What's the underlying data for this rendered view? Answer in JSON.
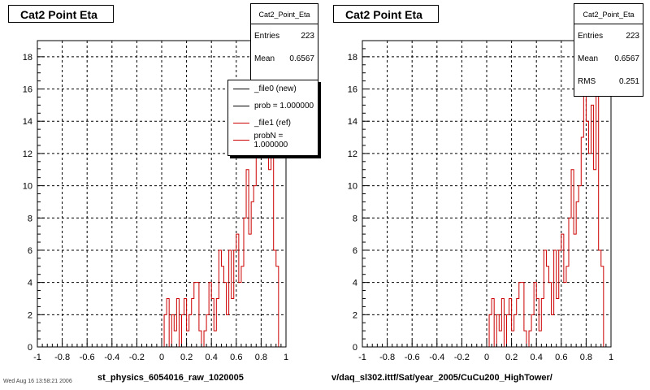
{
  "chart_data": [
    {
      "type": "bar",
      "title": "Cat2 Point Eta",
      "xlabel": "st_physics_6054016_raw_1020005",
      "xlim": [
        -1,
        1
      ],
      "ylim": [
        0,
        19
      ],
      "x_ticks": [
        "-1",
        "-0.8",
        "-0.6",
        "-0.4",
        "-0.2",
        "0",
        "0.2",
        "0.4",
        "0.6",
        "0.8",
        "1"
      ],
      "y_ticks": [
        "0",
        "2",
        "4",
        "6",
        "8",
        "10",
        "12",
        "14",
        "16",
        "18"
      ],
      "grid": true,
      "bin_width": 0.02,
      "series": [
        {
          "name": "_file0 (new)",
          "color": "#000000"
        },
        {
          "name": "_file1 (ref)",
          "color": "#cc0000",
          "values": [
            0,
            0,
            0,
            0,
            0,
            0,
            0,
            0,
            0,
            0,
            0,
            0,
            0,
            0,
            0,
            0,
            0,
            0,
            0,
            0,
            0,
            0,
            0,
            0,
            0,
            0,
            0,
            0,
            0,
            0,
            0,
            0,
            0,
            0,
            0,
            0,
            0,
            0,
            0,
            0,
            0,
            0,
            0,
            0,
            0,
            0,
            0,
            0,
            0,
            0,
            0,
            2,
            3,
            0,
            2,
            1,
            3,
            0,
            2,
            3,
            1,
            2,
            3,
            4,
            4,
            1,
            0,
            1,
            2,
            4,
            3,
            1,
            3,
            6,
            5,
            4,
            2,
            6,
            3,
            6,
            7,
            4,
            5,
            8,
            11,
            7,
            9,
            10,
            13,
            18,
            14,
            12,
            15,
            11,
            16,
            6,
            5,
            0,
            0,
            0
          ]
        }
      ],
      "stats": {
        "header": "Cat2_Point_Eta",
        "entries_label": "Entries",
        "entries": "223",
        "mean_label": "Mean",
        "mean": "0.6567"
      },
      "legend": [
        {
          "label": "_file0 (new)",
          "color": "#000000"
        },
        {
          "label": "prob = 1.000000",
          "color": "#000000"
        },
        {
          "label": "_file1 (ref)",
          "color": "#cc0000"
        },
        {
          "label": "probN = 1.000000",
          "color": "#cc0000"
        }
      ]
    },
    {
      "type": "bar",
      "title": "Cat2 Point Eta",
      "xlabel": "v/daq_sl302.ittf/Sat/year_2005/CuCu200_HighTower/",
      "xlim": [
        -1,
        1
      ],
      "ylim": [
        0,
        19
      ],
      "x_ticks": [
        "-1",
        "-0.8",
        "-0.6",
        "-0.4",
        "-0.2",
        "0",
        "0.2",
        "0.4",
        "0.6",
        "0.8",
        "1"
      ],
      "y_ticks": [
        "0",
        "2",
        "4",
        "6",
        "8",
        "10",
        "12",
        "14",
        "16",
        "18"
      ],
      "grid": true,
      "bin_width": 0.02,
      "series": [
        {
          "name": "_file1 (ref)",
          "color": "#cc0000",
          "values": [
            0,
            0,
            0,
            0,
            0,
            0,
            0,
            0,
            0,
            0,
            0,
            0,
            0,
            0,
            0,
            0,
            0,
            0,
            0,
            0,
            0,
            0,
            0,
            0,
            0,
            0,
            0,
            0,
            0,
            0,
            0,
            0,
            0,
            0,
            0,
            0,
            0,
            0,
            0,
            0,
            0,
            0,
            0,
            0,
            0,
            0,
            0,
            0,
            0,
            0,
            0,
            2,
            3,
            0,
            2,
            1,
            3,
            0,
            2,
            3,
            1,
            2,
            3,
            4,
            4,
            1,
            0,
            1,
            2,
            4,
            3,
            1,
            3,
            6,
            5,
            4,
            2,
            6,
            3,
            6,
            7,
            4,
            5,
            8,
            11,
            7,
            9,
            10,
            13,
            18,
            14,
            12,
            15,
            11,
            16,
            6,
            5,
            0,
            0,
            0
          ]
        }
      ],
      "stats": {
        "header": "Cat2_Point_Eta",
        "entries_label": "Entries",
        "entries": "223",
        "mean_label": "Mean",
        "mean": "0.6567",
        "rms_label": "RMS",
        "rms": "0.251"
      }
    }
  ],
  "footer_text": "Wed Aug 16 13:58:21 2006"
}
